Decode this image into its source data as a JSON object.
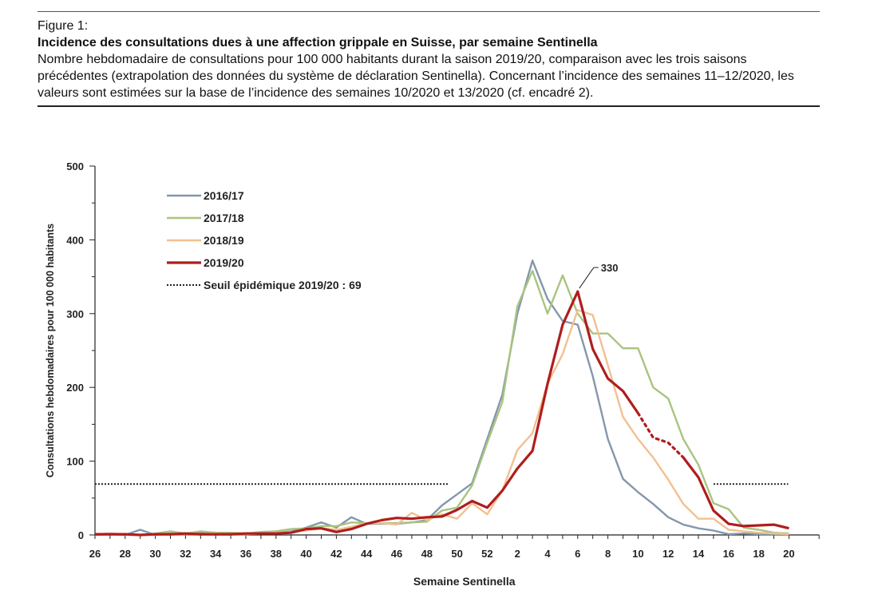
{
  "figure": {
    "label": "Figure 1:",
    "title": "Incidence des consultations dues à une affection grippale en Suisse, par semaine Sentinella",
    "description": "Nombre hebdomadaire de consultations pour 100 000 habitants durant la saison 2019/20, comparaison avec les trois saisons précédentes (extrapolation des données du système de déclaration Sentinella). Concernant l’incidence des semaines 11–12/2020, les valeurs sont estimées sur la base de l’incidence des semaines 10/2020 et 13/2020 (cf. encadré 2)."
  },
  "chart_data": {
    "type": "line",
    "xlabel": "Semaine Sentinella",
    "ylabel": "Consultations hebdomadaires pour 100 000 habitants",
    "ylim": [
      0,
      500
    ],
    "yticks": [
      0,
      100,
      200,
      300,
      400,
      500
    ],
    "weeks": [
      "26",
      "27",
      "28",
      "29",
      "30",
      "31",
      "32",
      "33",
      "34",
      "35",
      "36",
      "37",
      "38",
      "39",
      "40",
      "41",
      "42",
      "43",
      "44",
      "45",
      "46",
      "47",
      "48",
      "49",
      "50",
      "51",
      "52",
      "1",
      "2",
      "3",
      "4",
      "5",
      "6",
      "7",
      "8",
      "9",
      "10",
      "11",
      "12",
      "13",
      "14",
      "15",
      "16",
      "17",
      "18",
      "19",
      "20"
    ],
    "tick_labels": [
      "26",
      "28",
      "30",
      "32",
      "34",
      "36",
      "38",
      "40",
      "42",
      "44",
      "46",
      "48",
      "50",
      "52",
      "2",
      "4",
      "6",
      "8",
      "10",
      "12",
      "14",
      "16",
      "18",
      "20"
    ],
    "series": [
      {
        "name": "2016/17",
        "color": "#8497aa",
        "values": [
          0,
          1,
          0,
          7,
          0,
          2,
          1,
          3,
          1,
          2,
          1,
          2,
          3,
          5,
          10,
          17,
          10,
          24,
          15,
          15,
          15,
          17,
          20,
          40,
          55,
          70,
          130,
          190,
          300,
          372,
          320,
          290,
          285,
          215,
          130,
          76,
          58,
          42,
          24,
          14,
          9,
          6,
          1,
          2,
          1,
          1,
          1
        ]
      },
      {
        "name": "2017/18",
        "color": "#a9c47f",
        "values": [
          1,
          2,
          1,
          0,
          2,
          5,
          2,
          5,
          3,
          3,
          2,
          4,
          5,
          8,
          9,
          12,
          12,
          17,
          16,
          16,
          16,
          17,
          18,
          33,
          37,
          67,
          125,
          180,
          310,
          358,
          300,
          352,
          300,
          273,
          273,
          253,
          253,
          200,
          185,
          130,
          95,
          43,
          35,
          10,
          7,
          3,
          2
        ]
      },
      {
        "name": "2018/19",
        "color": "#f2c091",
        "values": [
          1,
          2,
          1,
          0,
          1,
          1,
          1,
          1,
          2,
          1,
          1,
          2,
          3,
          4,
          6,
          9,
          7,
          11,
          16,
          16,
          14,
          30,
          20,
          28,
          22,
          43,
          28,
          60,
          115,
          138,
          205,
          245,
          305,
          298,
          230,
          160,
          130,
          105,
          75,
          42,
          22,
          22,
          7,
          5,
          3,
          2,
          1
        ]
      },
      {
        "name": "2019/20",
        "color": "#b01d1d",
        "values": [
          1,
          1,
          1,
          0,
          1,
          1,
          2,
          1,
          1,
          1,
          2,
          2,
          2,
          3,
          8,
          9,
          4,
          8,
          15,
          20,
          23,
          22,
          24,
          25,
          34,
          46,
          37,
          60,
          90,
          114,
          205,
          285,
          330,
          252,
          212,
          195,
          165,
          132,
          125,
          105,
          78,
          33,
          15,
          12,
          13,
          14,
          9
        ],
        "estimated_weeks": [
          "11",
          "12"
        ]
      }
    ],
    "threshold": {
      "label": "Seuil épidémique 2019/20 : 69",
      "value": 69
    },
    "annotations": [
      {
        "text": "330",
        "week": "6",
        "value": 330
      }
    ],
    "grid": false,
    "legend_position": "top-left"
  }
}
